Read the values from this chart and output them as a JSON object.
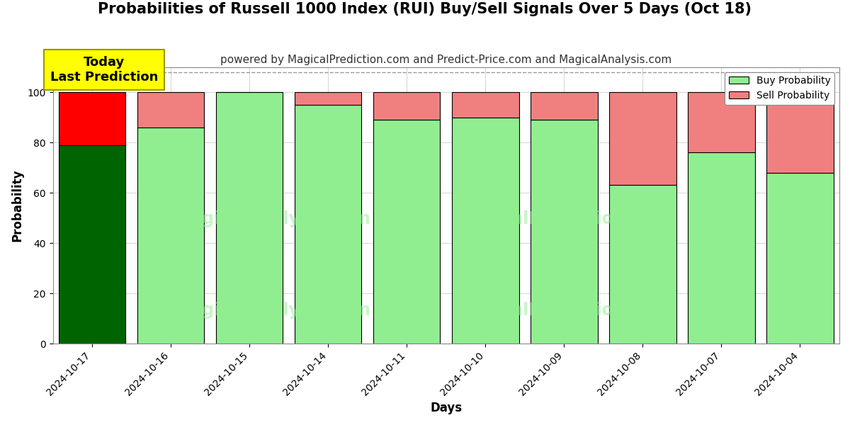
{
  "title": "Probabilities of Russell 1000 Index (RUI) Buy/Sell Signals Over 5 Days (Oct 18)",
  "subtitle": "powered by MagicalPrediction.com and Predict-Price.com and MagicalAnalysis.com",
  "xlabel": "Days",
  "ylabel": "Probability",
  "dates": [
    "2024-10-17",
    "2024-10-16",
    "2024-10-15",
    "2024-10-14",
    "2024-10-11",
    "2024-10-10",
    "2024-10-09",
    "2024-10-08",
    "2024-10-07",
    "2024-10-04"
  ],
  "buy_probs": [
    79,
    86,
    100,
    95,
    89,
    90,
    89,
    63,
    76,
    68
  ],
  "sell_probs": [
    21,
    14,
    0,
    5,
    11,
    10,
    11,
    37,
    24,
    32
  ],
  "today_buy_color": "#006400",
  "today_sell_color": "#FF0000",
  "buy_color": "#90EE90",
  "sell_color": "#F08080",
  "bar_edge_color": "#000000",
  "today_annotation_bg": "#FFFF00",
  "today_annotation_text": "Today\nLast Prediction",
  "ylim": [
    0,
    110
  ],
  "dashed_line_y": 108,
  "background_color": "#FFFFFF",
  "grid_color": "#AAAAAA",
  "title_fontsize": 15,
  "subtitle_fontsize": 11,
  "axis_label_fontsize": 12,
  "tick_fontsize": 10,
  "bar_width": 0.85
}
